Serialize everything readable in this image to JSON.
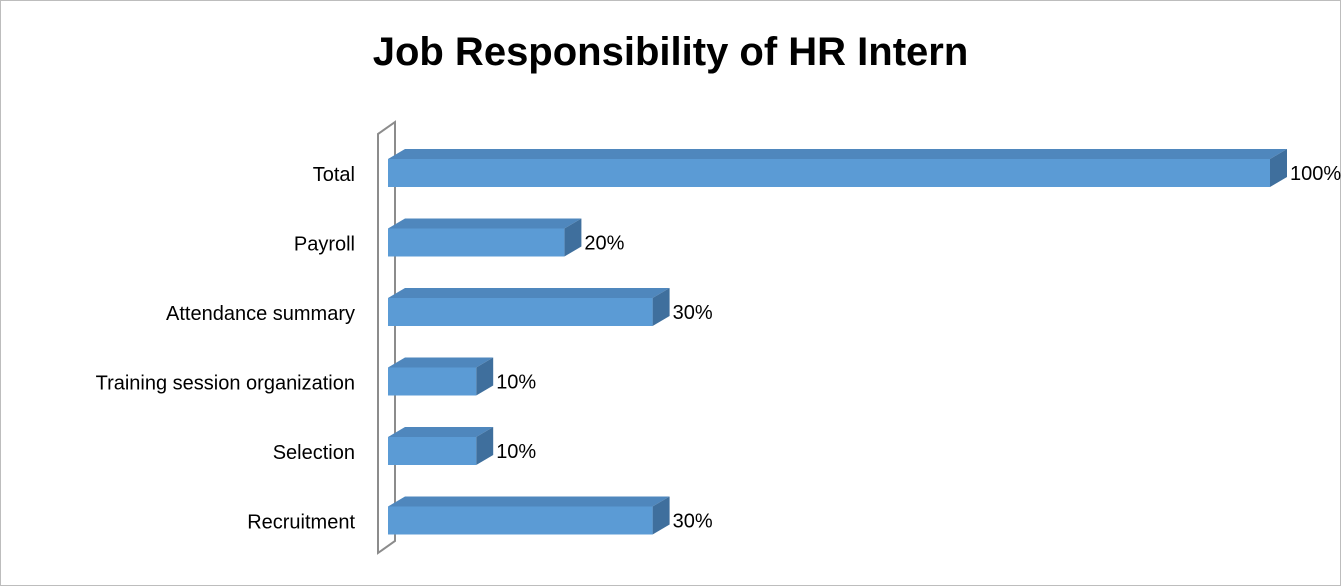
{
  "chart_data": {
    "type": "bar",
    "orientation": "horizontal",
    "style": "3d",
    "title": "Job Responsibility of HR Intern",
    "xlabel": "",
    "ylabel": "",
    "categories": [
      "Total",
      "Payroll",
      "Attendance summary",
      "Training session organization",
      "Selection",
      "Recruitment"
    ],
    "values": [
      100,
      20,
      30,
      10,
      10,
      30
    ],
    "data_labels": [
      "100%",
      "20%",
      "30%",
      "10%",
      "10%",
      "30%"
    ],
    "xlim": [
      0,
      100
    ],
    "grid": false,
    "legend": "none",
    "colors": {
      "bar_front": "#5b9bd5",
      "bar_top": "#4f87bd",
      "bar_side": "#3f6f9d",
      "axis_wall": "#8c8c8c"
    }
  }
}
